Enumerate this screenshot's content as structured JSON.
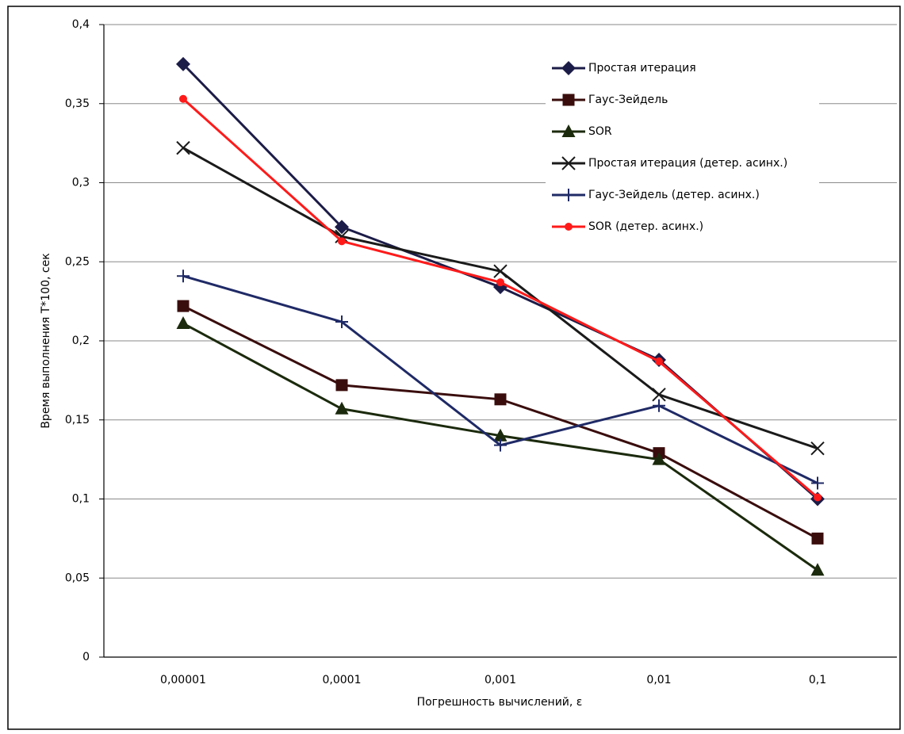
{
  "chart_data": {
    "type": "line",
    "x_label": "Погрешность вычислений, ε",
    "y_label": "Время выполнения T*100, сек",
    "categories": [
      "0,00001",
      "0,0001",
      "0,001",
      "0,01",
      "0,1"
    ],
    "ylim": [
      0,
      0.4
    ],
    "yticks": [
      {
        "value": 0,
        "label": "0"
      },
      {
        "value": 0.05,
        "label": "0,05"
      },
      {
        "value": 0.1,
        "label": "0,1"
      },
      {
        "value": 0.15,
        "label": "0,15"
      },
      {
        "value": 0.2,
        "label": "0,2"
      },
      {
        "value": 0.25,
        "label": "0,25"
      },
      {
        "value": 0.3,
        "label": "0,3"
      },
      {
        "value": 0.35,
        "label": "0,35"
      },
      {
        "value": 0.4,
        "label": "0,4"
      }
    ],
    "grid": true,
    "legend": "upper right",
    "series": [
      {
        "name": "Простая итерация",
        "color": "#1c1c48",
        "marker": "diamond",
        "values": [
          0.375,
          0.272,
          0.234,
          0.188,
          0.1
        ]
      },
      {
        "name": "Гаус-Зейдель",
        "color": "#3a0d0d",
        "marker": "square",
        "values": [
          0.222,
          0.172,
          0.163,
          0.129,
          0.075
        ]
      },
      {
        "name": "SOR",
        "color": "#1b2a0c",
        "marker": "triangle",
        "values": [
          0.211,
          0.157,
          0.14,
          0.125,
          0.055
        ]
      },
      {
        "name": "Простая итерация (детер. асинх.)",
        "color": "#1a1a1a",
        "marker": "x",
        "values": [
          0.322,
          0.266,
          0.244,
          0.166,
          0.132
        ]
      },
      {
        "name": "Гаус-Зейдель (детер. асинх.)",
        "color": "#1f2a66",
        "marker": "plus",
        "values": [
          0.241,
          0.212,
          0.134,
          0.159,
          0.11
        ]
      },
      {
        "name": "SOR (детер. асинх.)",
        "color": "#ff1a1a",
        "marker": "circle",
        "values": [
          0.353,
          0.263,
          0.237,
          0.187,
          0.101
        ]
      }
    ]
  }
}
